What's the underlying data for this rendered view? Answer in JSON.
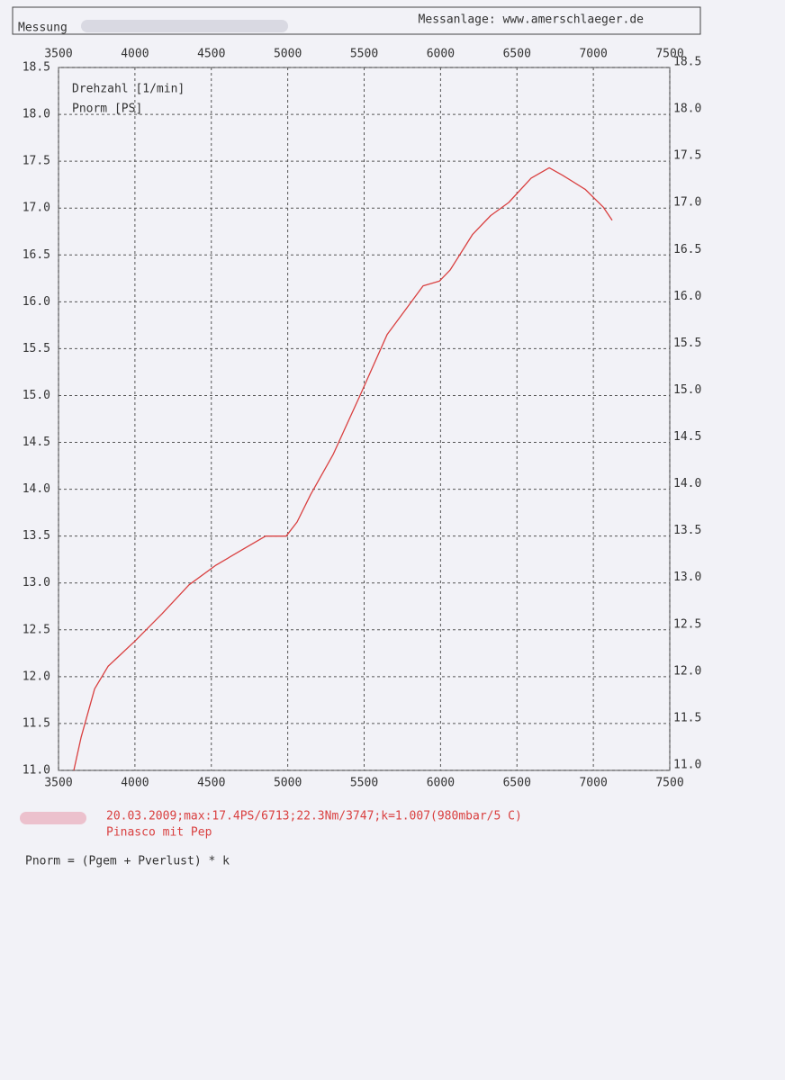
{
  "chart_data": {
    "type": "line",
    "header_left": "Messung",
    "header_right": "Messanlage: www.amerschlaeger.de",
    "x_label": "Drehzahl [1/min]",
    "y_label": "Pnorm [PS]",
    "x": [
      3600,
      3647,
      3736,
      3824,
      4000,
      4177,
      4354,
      4531,
      4708,
      4855,
      4990,
      5061,
      5149,
      5297,
      5473,
      5650,
      5768,
      5886,
      5992,
      6063,
      6210,
      6328,
      6446,
      6593,
      6711,
      6799,
      6947,
      7065,
      7123
    ],
    "values": [
      11.0,
      11.35,
      11.87,
      12.11,
      12.38,
      12.67,
      12.98,
      13.19,
      13.36,
      13.5,
      13.5,
      13.65,
      13.94,
      14.37,
      15.0,
      15.65,
      15.91,
      16.17,
      16.22,
      16.34,
      16.72,
      16.92,
      17.06,
      17.32,
      17.43,
      17.35,
      17.2,
      17.01,
      16.87
    ],
    "color": "#d94040",
    "xlim": [
      3500,
      7500
    ],
    "xticks": [
      3500,
      4000,
      4500,
      5000,
      5500,
      6000,
      6500,
      7000,
      7500
    ],
    "ylim": [
      11.0,
      18.5
    ],
    "yticks": [
      {
        "value": 11,
        "label": "11.0"
      },
      11.5,
      {
        "value": 12,
        "label": "12.0"
      },
      12.5,
      {
        "value": 13,
        "label": "13.0"
      },
      13.5,
      {
        "value": 14,
        "label": "14.0"
      },
      14.5,
      {
        "value": 15,
        "label": "15.0"
      },
      15.5,
      {
        "value": 16,
        "label": "16.0"
      },
      16.5,
      {
        "value": 17,
        "label": "17.0"
      },
      17.5,
      {
        "value": 18,
        "label": "18.0"
      },
      18.5
    ],
    "grid": true,
    "notes": [
      "20.03.2009;max:17.4PS/6713;22.3Nm/3747;k=1.007(980mbar/5 C)",
      "Pinasco mit Pep"
    ],
    "formula": "Pnorm = (Pgem + Pverlust) * k"
  }
}
